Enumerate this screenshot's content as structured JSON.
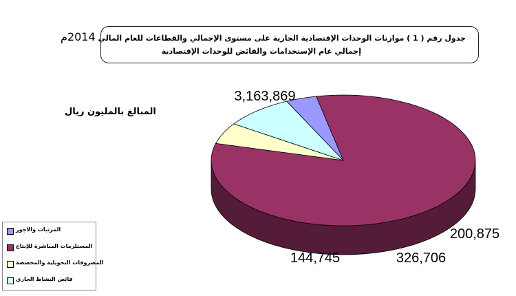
{
  "header": {
    "title_prefix": "جدول رقم",
    "table_number": "( 1 )",
    "title_text": "موازنات الوحدات الإقتصادية الجارية على مستوى الإجمالي والقطاعات للعام المالي",
    "title_year": "2014م",
    "subtitle": "إجمالي عام الإستخدامات والفائض للوحدات الإقتصادية"
  },
  "units_label": "المبالغ بالمليون ريال",
  "chart_data": {
    "type": "pie",
    "style": "3d",
    "categories": [
      "المرتبات والاجور",
      "المستلزمات المباشرة للإنتاج",
      "المصروفات التحويلية والمخصصة",
      "فائض النشاط الجاري"
    ],
    "values": [
      144745,
      3163869,
      200875,
      326706
    ],
    "data_labels": [
      "144,745",
      "3,163,869",
      "200,875",
      "326,706"
    ],
    "colors": [
      "#9999ff",
      "#993366",
      "#ffffcc",
      "#ccffff"
    ],
    "legend_position": "bottom-left"
  }
}
